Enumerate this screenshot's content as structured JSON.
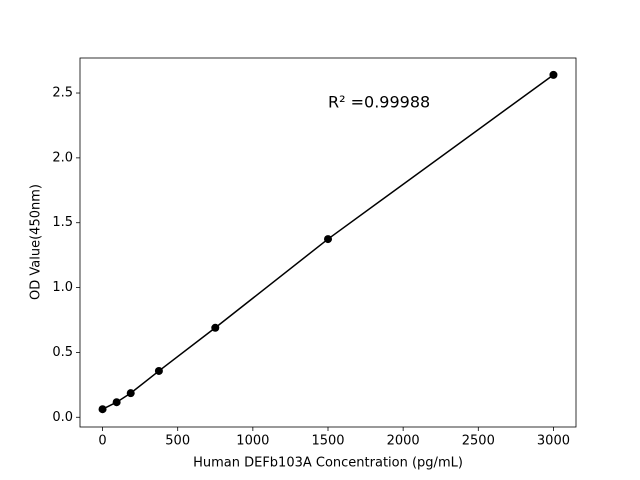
{
  "chart_data": {
    "type": "line",
    "xlabel": "Human DEFb103A Concentration (pg/mL)",
    "ylabel": "OD Value(450nm)",
    "annotation": "R² =0.99988",
    "x": [
      0,
      93.75,
      187.5,
      375,
      750,
      1500,
      3000
    ],
    "series": [
      {
        "color": "#000000",
        "values": [
          0.062,
          0.116,
          0.186,
          0.357,
          0.69,
          1.374,
          2.64
        ]
      }
    ],
    "xlim": [
      -150,
      3150
    ],
    "ylim": [
      -0.075,
      2.77
    ],
    "xticks": [
      0,
      500,
      1000,
      1500,
      2000,
      2500,
      3000
    ],
    "yticks": [
      {
        "value": 0,
        "label": "0.0"
      },
      0.5,
      {
        "value": 1,
        "label": "1.0"
      },
      1.5,
      {
        "value": 2,
        "label": "2.0"
      },
      2.5
    ],
    "grid": false
  }
}
